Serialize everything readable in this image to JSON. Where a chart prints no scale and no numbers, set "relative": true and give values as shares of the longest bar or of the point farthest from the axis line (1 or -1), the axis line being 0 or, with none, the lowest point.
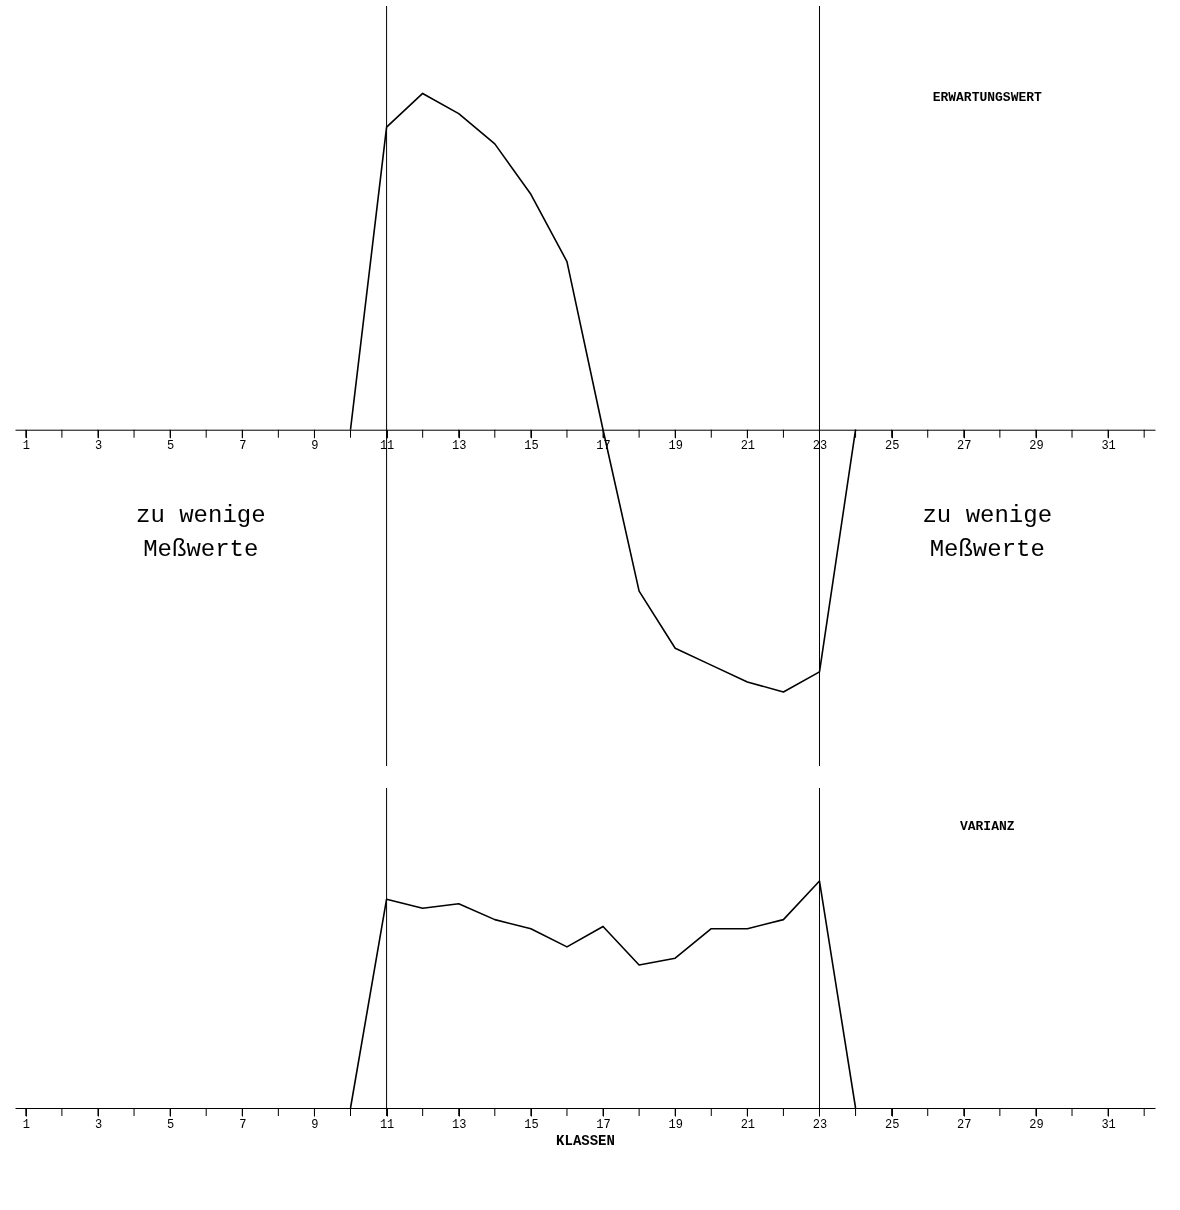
{
  "chart_data": [
    {
      "type": "line",
      "relative": true,
      "xlim": [
        0.7,
        32.3
      ],
      "xticks": [
        1,
        {
          "value": 2,
          "label": null
        },
        3,
        {
          "value": 4,
          "label": null
        },
        5,
        {
          "value": 6,
          "label": null
        },
        7,
        {
          "value": 8,
          "label": null
        },
        9,
        {
          "value": 10,
          "label": null
        },
        11,
        {
          "value": 12,
          "label": null
        },
        13,
        {
          "value": 14,
          "label": null
        },
        15,
        {
          "value": 16,
          "label": null
        },
        17,
        {
          "value": 18,
          "label": null
        },
        19,
        {
          "value": 20,
          "label": null
        },
        21,
        {
          "value": 22,
          "label": null
        },
        23,
        {
          "value": 24,
          "label": null
        },
        25,
        {
          "value": 26,
          "label": null
        },
        27,
        {
          "value": 28,
          "label": null
        },
        29,
        {
          "value": 30,
          "label": null
        },
        31,
        {
          "value": 32,
          "label": null
        }
      ],
      "series": [
        {
          "name": "ERWARTUNGSWERT",
          "color": "#000000",
          "x": [
            10,
            11,
            12,
            13,
            14,
            15,
            16,
            17,
            18,
            19,
            20,
            21,
            22,
            23,
            24
          ],
          "values": [
            0,
            0.9,
            1,
            0.94,
            0.85,
            0.7,
            0.5,
            0.0,
            -0.48,
            -0.65,
            -0.7,
            -0.75,
            -0.78,
            -0.72,
            0
          ]
        }
      ],
      "ref_lines": [
        {
          "axis": "x",
          "value": 11
        },
        {
          "axis": "x",
          "value": 23
        }
      ],
      "annotations": [
        "zu wenige\nMeßwerte",
        "zu wenige\nMeßwerte"
      ]
    },
    {
      "type": "line",
      "relative": true,
      "xlim": [
        0.7,
        32.3
      ],
      "xlabel": "KLASSEN",
      "xticks": [
        1,
        {
          "value": 2,
          "label": null
        },
        3,
        {
          "value": 4,
          "label": null
        },
        5,
        {
          "value": 6,
          "label": null
        },
        7,
        {
          "value": 8,
          "label": null
        },
        9,
        {
          "value": 10,
          "label": null
        },
        11,
        {
          "value": 12,
          "label": null
        },
        13,
        {
          "value": 14,
          "label": null
        },
        15,
        {
          "value": 16,
          "label": null
        },
        17,
        {
          "value": 18,
          "label": null
        },
        19,
        {
          "value": 20,
          "label": null
        },
        21,
        {
          "value": 22,
          "label": null
        },
        23,
        {
          "value": 24,
          "label": null
        },
        25,
        {
          "value": 26,
          "label": null
        },
        27,
        {
          "value": 28,
          "label": null
        },
        29,
        {
          "value": 30,
          "label": null
        },
        31,
        {
          "value": 32,
          "label": null
        }
      ],
      "series": [
        {
          "name": "VARIANZ",
          "color": "#000000",
          "x": [
            10,
            11,
            12,
            13,
            14,
            15,
            16,
            17,
            18,
            19,
            20,
            21,
            22,
            23,
            24
          ],
          "values": [
            0,
            0.92,
            0.88,
            0.9,
            0.83,
            0.79,
            0.71,
            0.8,
            0.63,
            0.66,
            0.79,
            0.79,
            0.83,
            1,
            0
          ]
        }
      ],
      "ref_lines": [
        {
          "axis": "x",
          "value": 11
        },
        {
          "axis": "x",
          "value": 23
        }
      ]
    }
  ]
}
